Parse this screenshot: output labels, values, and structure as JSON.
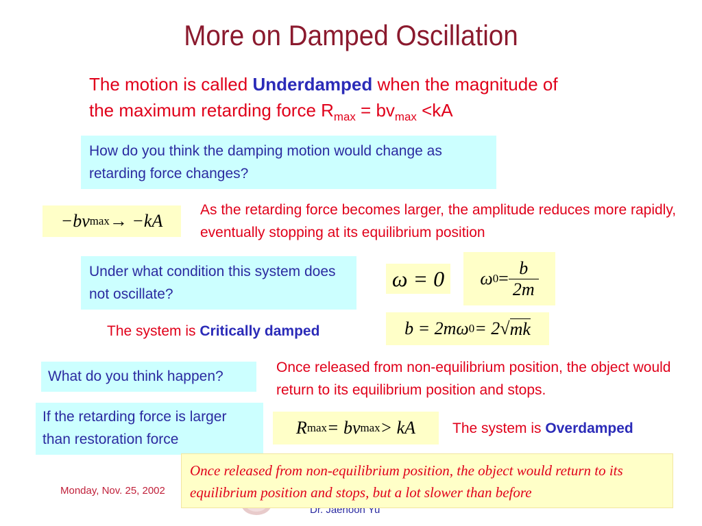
{
  "title": "More on Damped Oscillation",
  "intro": {
    "part1": "The motion is called ",
    "term": "Underdamped",
    "part2": " when the magnitude of",
    "line2a": "the maximum retarding force R",
    "sub1": "max",
    "line2b": " = bv",
    "sub2": "max",
    "line2c": " <kA"
  },
  "q1": "How do you think the damping motion would change as retarding force changes?",
  "eq1": {
    "lhs": "−bv",
    "sub": "max",
    "arrow": " → −kA"
  },
  "ans1": "As the retarding force becomes larger, the amplitude reduces more rapidly, eventually stopping at its equilibrium position",
  "q2": "Under what condition this system does not oscillate?",
  "eq2": "ω = 0",
  "eq3": {
    "lhs": "ω",
    "sub": "0",
    "eq": " = ",
    "num": "b",
    "den": "2m"
  },
  "crit": {
    "prefix": "The system is ",
    "term": "Critically damped"
  },
  "eq4": {
    "a": "b = 2mω",
    "sub": "0",
    "b": " = 2",
    "root": "mk"
  },
  "q3": "What do you think happen?",
  "ans2": "Once released from non-equilibrium position, the object would return to its equilibrium position and stops.",
  "q4": "If the retarding force is larger than restoration force",
  "eq5": {
    "R": "R",
    "sub1": "max",
    "mid": " = bv",
    "sub2": "max",
    "tail": " > kA"
  },
  "over": {
    "prefix": "The system is ",
    "term": "Overdamped"
  },
  "note": "Once released from non-equilibrium position, the object would return to its equilibrium position and stops, but a lot slower than before",
  "date": "Monday, Nov. 25, 2002",
  "author": "Dr. Jaehoon Yu"
}
